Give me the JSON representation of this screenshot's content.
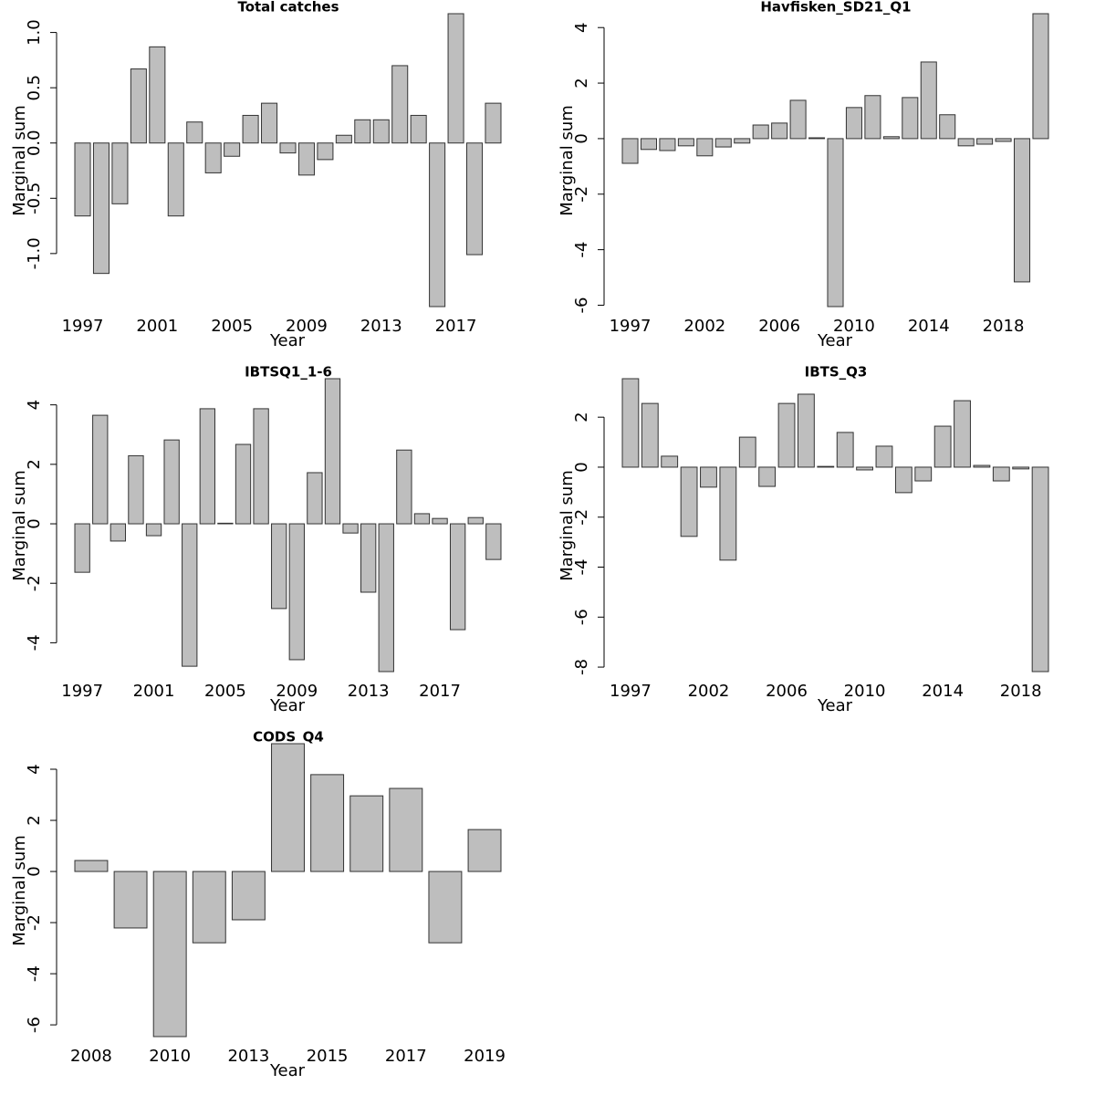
{
  "chart_data": [
    {
      "type": "bar",
      "title": "Total catches",
      "xlabel": "Year",
      "ylabel": "Marginal sum",
      "categories": [
        "1997",
        null,
        null,
        null,
        "2001",
        null,
        null,
        null,
        "2005",
        null,
        null,
        null,
        "2009",
        null,
        null,
        null,
        "2013",
        null,
        null,
        null,
        "2017",
        null,
        null
      ],
      "values": [
        -0.66,
        -1.18,
        -0.55,
        0.67,
        0.87,
        -0.66,
        0.19,
        -0.27,
        -0.12,
        0.25,
        0.36,
        -0.09,
        -0.29,
        -0.15,
        0.07,
        0.21,
        0.21,
        0.7,
        0.25,
        -1.48,
        1.17,
        -1.01,
        0.36
      ],
      "color": "#bebebe",
      "ylim": [
        -1.48,
        1.17
      ],
      "yticks": [
        {
          "value": -1,
          "label": "-1.0"
        },
        -0.5,
        {
          "value": 0,
          "label": "0.0"
        },
        0.5,
        {
          "value": 1,
          "label": "1.0"
        }
      ]
    },
    {
      "type": "bar",
      "title": "Havfisken_SD21_Q1",
      "xlabel": "Year",
      "ylabel": "Marginal sum",
      "categories": [
        "1997",
        null,
        null,
        null,
        "2002",
        null,
        null,
        null,
        "2006",
        null,
        null,
        null,
        "2010",
        null,
        null,
        null,
        "2014",
        null,
        null,
        null,
        "2018",
        null,
        null
      ],
      "values": [
        -0.89,
        -0.39,
        -0.43,
        -0.26,
        -0.62,
        -0.3,
        -0.16,
        0.49,
        0.56,
        1.38,
        0.03,
        -6.05,
        1.12,
        1.55,
        0.07,
        1.48,
        2.76,
        0.86,
        -0.26,
        -0.2,
        -0.1,
        -5.16,
        4.5
      ],
      "color": "#bebebe",
      "ylim": [
        -6.05,
        4.5
      ],
      "yticks": [
        -6,
        -4,
        -2,
        0,
        2,
        4
      ]
    },
    {
      "type": "bar",
      "title": "IBTSQ1_1-6",
      "xlabel": "Year",
      "ylabel": "Marginal sum",
      "categories": [
        "1997",
        null,
        null,
        null,
        "2001",
        null,
        null,
        null,
        "2005",
        null,
        null,
        null,
        "2009",
        null,
        null,
        null,
        "2013",
        null,
        null,
        null,
        "2017",
        null,
        null,
        null
      ],
      "values": [
        -1.63,
        3.65,
        -0.58,
        2.29,
        -0.4,
        2.82,
        -4.79,
        3.87,
        0.02,
        2.67,
        3.87,
        -2.85,
        -4.57,
        1.72,
        4.88,
        -0.31,
        -2.3,
        -4.97,
        2.48,
        0.34,
        0.18,
        -3.56,
        0.21,
        -1.2
      ],
      "color": "#bebebe",
      "ylim": [
        -4.97,
        4.88
      ],
      "yticks": [
        -4,
        -2,
        0,
        2,
        4
      ]
    },
    {
      "type": "bar",
      "title": "IBTS_Q3",
      "xlabel": "Year",
      "ylabel": "Marginal sum",
      "categories": [
        "1997",
        null,
        null,
        null,
        "2002",
        null,
        null,
        null,
        "2006",
        null,
        null,
        null,
        "2010",
        null,
        null,
        null,
        "2014",
        null,
        null,
        null,
        "2018",
        null
      ],
      "values": [
        3.54,
        2.55,
        0.44,
        -2.77,
        -0.8,
        -3.72,
        1.2,
        -0.77,
        2.55,
        2.92,
        0.03,
        1.39,
        -0.11,
        0.84,
        -1.02,
        -0.55,
        1.64,
        2.66,
        0.07,
        -0.55,
        -0.07,
        -8.18
      ],
      "color": "#bebebe",
      "ylim": [
        -8.18,
        3.54
      ],
      "yticks": [
        -8,
        -6,
        -4,
        -2,
        0,
        2
      ]
    },
    {
      "type": "bar",
      "title": "CODS_Q4",
      "xlabel": "Year",
      "ylabel": "Marginal sum",
      "categories": [
        "2008",
        null,
        "2010",
        null,
        "2013",
        null,
        "2015",
        null,
        "2017",
        null,
        "2019"
      ],
      "values": [
        0.43,
        -2.21,
        -6.46,
        -2.79,
        -1.89,
        5.0,
        3.79,
        2.96,
        3.25,
        -2.79,
        1.64
      ],
      "color": "#bebebe",
      "ylim": [
        -6.46,
        5.0
      ],
      "yticks": [
        -6,
        -4,
        -2,
        0,
        2,
        4
      ]
    }
  ]
}
